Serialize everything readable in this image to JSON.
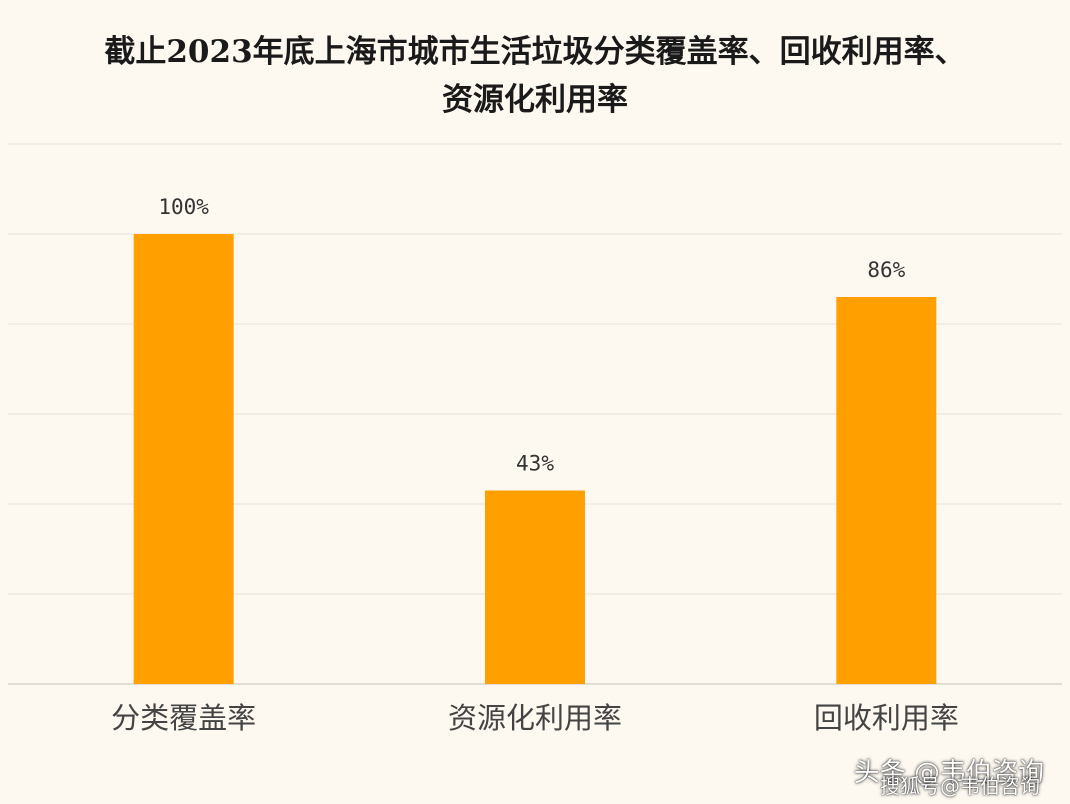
{
  "chart_data": {
    "type": "bar",
    "title_lines": [
      "截止2023年底上海市城市生活垃圾分类覆盖率、回收利用率、",
      "资源化利用率"
    ],
    "categories": [
      "分类覆盖率",
      "资源化利用率",
      "回收利用率"
    ],
    "values": [
      100,
      43,
      86
    ],
    "data_labels": [
      "100%",
      "43%",
      "86%"
    ],
    "ylim": [
      0,
      120
    ],
    "grid": true,
    "xlabel": "",
    "ylabel": "",
    "colors": {
      "bar": "#ffa000",
      "grid": "#e9e2d8",
      "axis": "#d9d2c8",
      "background": "#fdf8f0"
    }
  },
  "watermarks": [
    "头条 @韦伯咨询",
    "搜狐号@韦伯咨询"
  ]
}
